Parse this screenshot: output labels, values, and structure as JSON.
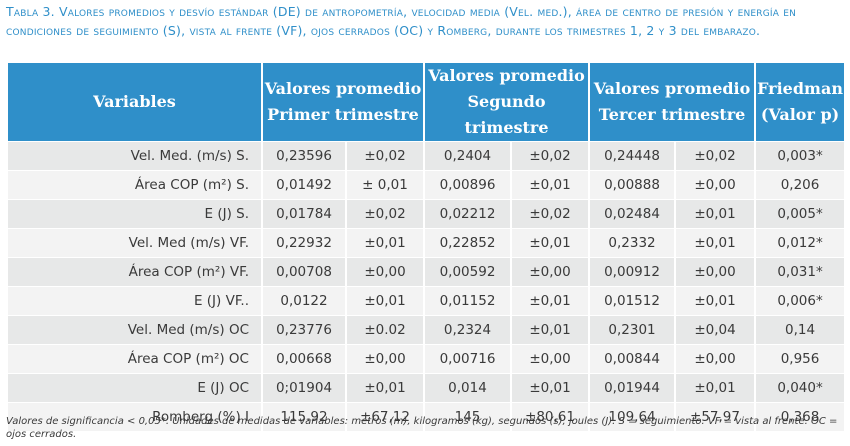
{
  "caption": "Tabla 3. Valores promedios y desvío estándar (DE) de antropometría, velocidad media (Vel. med.), área de centro de presión y energía en condiciones de seguimiento (S), vista al frente (VF), ojos cerrados (OC) y Romberg, durante los trimestres 1, 2 y 3 del embarazo.",
  "header": {
    "variables": "Variables",
    "t1_line1": "Valores promedio",
    "t1_line2": "Primer trimestre",
    "t2_line1": "Valores promedio",
    "t2_line2": "Segundo trimestre",
    "t3_line1": "Valores promedio",
    "t3_line2": "Tercer trimestre",
    "friedman_line1": "Friedman",
    "friedman_line2": "(Valor p)"
  },
  "rows": [
    {
      "label": "Vel. Med. (m/s) S.",
      "t1": "0,23596",
      "t1_sd": "±0,02",
      "t2": "0,2404",
      "t2_sd": "±0,02",
      "t3": "0,24448",
      "t3_sd": "±0,02",
      "p": "0,003*"
    },
    {
      "label": "Área COP (m²) S.",
      "t1": "0,01492",
      "t1_sd": "± 0,01",
      "t2": "0,00896",
      "t2_sd": "±0,01",
      "t3": "0,00888",
      "t3_sd": "±0,00",
      "p": "0,206"
    },
    {
      "label": "E (J) S.",
      "t1": "0,01784",
      "t1_sd": "±0,02",
      "t2": "0,02212",
      "t2_sd": "±0,02",
      "t3": "0,02484",
      "t3_sd": "±0,01",
      "p": "0,005*"
    },
    {
      "label": "Vel. Med (m/s) VF.",
      "t1": "0,22932",
      "t1_sd": "±0,01",
      "t2": "0,22852",
      "t2_sd": "±0,01",
      "t3": "0,2332",
      "t3_sd": "±0,01",
      "p": "0,012*"
    },
    {
      "label": "Área COP (m²) VF.",
      "t1": "0,00708",
      "t1_sd": "±0,00",
      "t2": "0,00592",
      "t2_sd": "±0,00",
      "t3": "0,00912",
      "t3_sd": "±0,00",
      "p": "0,031*"
    },
    {
      "label": "E (J) VF..",
      "t1": "0,0122",
      "t1_sd": "±0,01",
      "t2": "0,01152",
      "t2_sd": "±0,01",
      "t3": "0,01512",
      "t3_sd": "±0,01",
      "p": "0,006*"
    },
    {
      "label": "Vel. Med (m/s) OC",
      "t1": "0,23776",
      "t1_sd": "±0.02",
      "t2": "0,2324",
      "t2_sd": "±0,01",
      "t3": "0,2301",
      "t3_sd": "±0,04",
      "p": "0,14"
    },
    {
      "label": "Área COP (m²) OC",
      "t1": "0,00668",
      "t1_sd": "±0,00",
      "t2": "0,00716",
      "t2_sd": "±0,00",
      "t3": "0,00844",
      "t3_sd": "±0,00",
      "p": "0,956"
    },
    {
      "label": "E (J) OC",
      "t1": "0;01904",
      "t1_sd": "±0,01",
      "t2": "0,014",
      "t2_sd": "±0,01",
      "t3": "0,01944",
      "t3_sd": "±0,01",
      "p": "0,040*"
    },
    {
      "label": "Romberg (%) I",
      "t1": "115.92",
      "t1_sd": "±67,12",
      "t2": "145",
      "t2_sd": "±80,61",
      "t3": "109,64",
      "t3_sd": "±57,97",
      "p": "0,368"
    }
  ],
  "footnote": "Valores de significancia < 0,05*. Unidades de medidas de variables: metros (m), kilogramos (kg), segundos (s), joules (J). S = seguimiento. VF = vista al frente. OC = ojos cerrados.",
  "colors": {
    "header_bg": "#2f8fc9",
    "caption": "#2f8fc9",
    "row_odd": "#e7e8e8",
    "row_even": "#f3f3f3"
  }
}
